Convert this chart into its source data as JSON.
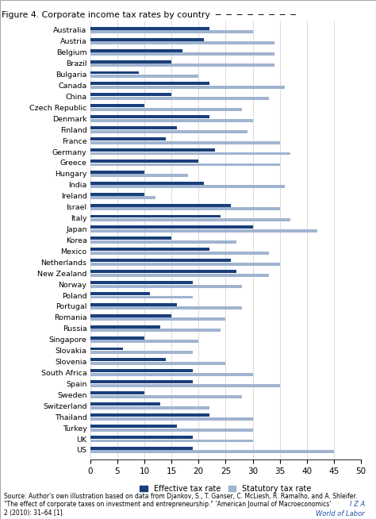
{
  "title": "Figure 4. Corporate income tax rates by country",
  "countries": [
    "Australia",
    "Austria",
    "Belgium",
    "Brazil",
    "Bulgaria",
    "Canada",
    "China",
    "Czech Republic",
    "Denmark",
    "Finland",
    "France",
    "Germany",
    "Greece",
    "Hungary",
    "India",
    "Ireland",
    "Israel",
    "Italy",
    "Japan",
    "Korea",
    "Mexico",
    "Netherlands",
    "New Zealand",
    "Norway",
    "Poland",
    "Portugal",
    "Romania",
    "Russia",
    "Singapore",
    "Slovakia",
    "Slovenia",
    "South Africa",
    "Spain",
    "Sweden",
    "Switzerland",
    "Thailand",
    "Turkey",
    "UK",
    "US"
  ],
  "effective": [
    22,
    21,
    17,
    15,
    9,
    22,
    15,
    10,
    22,
    16,
    14,
    23,
    20,
    10,
    21,
    10,
    26,
    24,
    30,
    15,
    22,
    26,
    27,
    19,
    11,
    16,
    15,
    13,
    10,
    6,
    14,
    19,
    19,
    10,
    13,
    22,
    16,
    19,
    19
  ],
  "statutory": [
    30,
    34,
    34,
    34,
    20,
    36,
    33,
    28,
    30,
    29,
    35,
    37,
    35,
    18,
    36,
    12,
    35,
    37,
    42,
    27,
    33,
    35,
    33,
    28,
    19,
    28,
    25,
    24,
    20,
    19,
    25,
    30,
    35,
    28,
    22,
    30,
    30,
    30,
    45
  ],
  "effective_color": "#1a3f7a",
  "statutory_color": "#a0b4d0",
  "xlim": [
    0,
    50
  ],
  "xticks": [
    0,
    5,
    10,
    15,
    20,
    25,
    30,
    35,
    40,
    45,
    50
  ],
  "legend_effective": "Effective tax rate",
  "legend_statutory": "Statutory tax rate",
  "bar_height": 0.28,
  "bar_gap": 0.05,
  "figure_width": 4.74,
  "figure_height": 6.54,
  "dpi": 100
}
